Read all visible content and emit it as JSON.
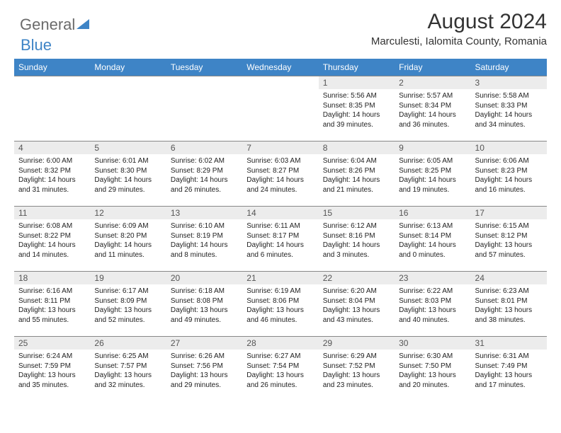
{
  "logo": {
    "part1": "General",
    "part2": "Blue"
  },
  "title": "August 2024",
  "location": "Marculesti, Ialomita County, Romania",
  "colors": {
    "header_bg": "#3e84c6",
    "header_text": "#ffffff",
    "daynum_bg": "#ececec",
    "logo_gray": "#6b6b6b",
    "logo_blue": "#3e84c6",
    "border": "#888888",
    "text": "#222222"
  },
  "dayNames": [
    "Sunday",
    "Monday",
    "Tuesday",
    "Wednesday",
    "Thursday",
    "Friday",
    "Saturday"
  ],
  "weeks": [
    [
      {
        "empty": true
      },
      {
        "empty": true
      },
      {
        "empty": true
      },
      {
        "empty": true
      },
      {
        "n": "1",
        "sr": "5:56 AM",
        "ss": "8:35 PM",
        "dl": "14 hours and 39 minutes."
      },
      {
        "n": "2",
        "sr": "5:57 AM",
        "ss": "8:34 PM",
        "dl": "14 hours and 36 minutes."
      },
      {
        "n": "3",
        "sr": "5:58 AM",
        "ss": "8:33 PM",
        "dl": "14 hours and 34 minutes."
      }
    ],
    [
      {
        "n": "4",
        "sr": "6:00 AM",
        "ss": "8:32 PM",
        "dl": "14 hours and 31 minutes."
      },
      {
        "n": "5",
        "sr": "6:01 AM",
        "ss": "8:30 PM",
        "dl": "14 hours and 29 minutes."
      },
      {
        "n": "6",
        "sr": "6:02 AM",
        "ss": "8:29 PM",
        "dl": "14 hours and 26 minutes."
      },
      {
        "n": "7",
        "sr": "6:03 AM",
        "ss": "8:27 PM",
        "dl": "14 hours and 24 minutes."
      },
      {
        "n": "8",
        "sr": "6:04 AM",
        "ss": "8:26 PM",
        "dl": "14 hours and 21 minutes."
      },
      {
        "n": "9",
        "sr": "6:05 AM",
        "ss": "8:25 PM",
        "dl": "14 hours and 19 minutes."
      },
      {
        "n": "10",
        "sr": "6:06 AM",
        "ss": "8:23 PM",
        "dl": "14 hours and 16 minutes."
      }
    ],
    [
      {
        "n": "11",
        "sr": "6:08 AM",
        "ss": "8:22 PM",
        "dl": "14 hours and 14 minutes."
      },
      {
        "n": "12",
        "sr": "6:09 AM",
        "ss": "8:20 PM",
        "dl": "14 hours and 11 minutes."
      },
      {
        "n": "13",
        "sr": "6:10 AM",
        "ss": "8:19 PM",
        "dl": "14 hours and 8 minutes."
      },
      {
        "n": "14",
        "sr": "6:11 AM",
        "ss": "8:17 PM",
        "dl": "14 hours and 6 minutes."
      },
      {
        "n": "15",
        "sr": "6:12 AM",
        "ss": "8:16 PM",
        "dl": "14 hours and 3 minutes."
      },
      {
        "n": "16",
        "sr": "6:13 AM",
        "ss": "8:14 PM",
        "dl": "14 hours and 0 minutes."
      },
      {
        "n": "17",
        "sr": "6:15 AM",
        "ss": "8:12 PM",
        "dl": "13 hours and 57 minutes."
      }
    ],
    [
      {
        "n": "18",
        "sr": "6:16 AM",
        "ss": "8:11 PM",
        "dl": "13 hours and 55 minutes."
      },
      {
        "n": "19",
        "sr": "6:17 AM",
        "ss": "8:09 PM",
        "dl": "13 hours and 52 minutes."
      },
      {
        "n": "20",
        "sr": "6:18 AM",
        "ss": "8:08 PM",
        "dl": "13 hours and 49 minutes."
      },
      {
        "n": "21",
        "sr": "6:19 AM",
        "ss": "8:06 PM",
        "dl": "13 hours and 46 minutes."
      },
      {
        "n": "22",
        "sr": "6:20 AM",
        "ss": "8:04 PM",
        "dl": "13 hours and 43 minutes."
      },
      {
        "n": "23",
        "sr": "6:22 AM",
        "ss": "8:03 PM",
        "dl": "13 hours and 40 minutes."
      },
      {
        "n": "24",
        "sr": "6:23 AM",
        "ss": "8:01 PM",
        "dl": "13 hours and 38 minutes."
      }
    ],
    [
      {
        "n": "25",
        "sr": "6:24 AM",
        "ss": "7:59 PM",
        "dl": "13 hours and 35 minutes."
      },
      {
        "n": "26",
        "sr": "6:25 AM",
        "ss": "7:57 PM",
        "dl": "13 hours and 32 minutes."
      },
      {
        "n": "27",
        "sr": "6:26 AM",
        "ss": "7:56 PM",
        "dl": "13 hours and 29 minutes."
      },
      {
        "n": "28",
        "sr": "6:27 AM",
        "ss": "7:54 PM",
        "dl": "13 hours and 26 minutes."
      },
      {
        "n": "29",
        "sr": "6:29 AM",
        "ss": "7:52 PM",
        "dl": "13 hours and 23 minutes."
      },
      {
        "n": "30",
        "sr": "6:30 AM",
        "ss": "7:50 PM",
        "dl": "13 hours and 20 minutes."
      },
      {
        "n": "31",
        "sr": "6:31 AM",
        "ss": "7:49 PM",
        "dl": "13 hours and 17 minutes."
      }
    ]
  ]
}
